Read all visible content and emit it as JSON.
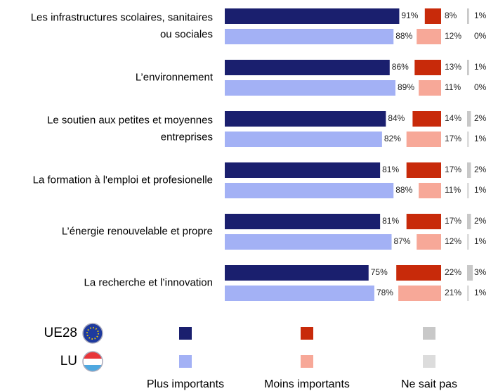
{
  "chart_data": {
    "type": "bar",
    "categories": [
      [
        "Les infrastructures scolaires, sanitaires",
        "ou sociales"
      ],
      [
        "L’environnement"
      ],
      [
        "Le soutien aux petites et moyennes",
        "entreprises"
      ],
      [
        "La formation à l'emploi et profesionelle"
      ],
      [
        "L’énergie renouvelable et propre"
      ],
      [
        "La recherche et l’innovation"
      ]
    ],
    "measures": [
      "Plus importants",
      "Moins importants",
      "Ne sait pas"
    ],
    "series": [
      {
        "name": "UE28",
        "colors": [
          "#1a1f6e",
          "#c82a0a",
          "#c8c8c8"
        ],
        "values": [
          [
            91,
            8,
            1
          ],
          [
            86,
            13,
            1
          ],
          [
            84,
            14,
            2
          ],
          [
            81,
            17,
            2
          ],
          [
            81,
            17,
            2
          ],
          [
            75,
            22,
            3
          ]
        ],
        "value_labels": [
          [
            "91%",
            "8%",
            "1%"
          ],
          [
            "86%",
            "13%",
            "1%"
          ],
          [
            "84%",
            "14%",
            "2%"
          ],
          [
            "81%",
            "17%",
            "2%"
          ],
          [
            "81%",
            "17%",
            "2%"
          ],
          [
            "75%",
            "22%",
            "3%"
          ]
        ]
      },
      {
        "name": "LU",
        "colors": [
          "#a3b1f5",
          "#f7a898",
          "#dcdcdc"
        ],
        "values": [
          [
            88,
            12,
            0
          ],
          [
            89,
            11,
            0
          ],
          [
            82,
            17,
            1
          ],
          [
            88,
            11,
            1
          ],
          [
            87,
            12,
            1
          ],
          [
            78,
            21,
            1
          ]
        ],
        "value_labels": [
          [
            "88%",
            "12%",
            "0%"
          ],
          [
            "89%",
            "11%",
            "0%"
          ],
          [
            "82%",
            "17%",
            "1%"
          ],
          [
            "88%",
            "11%",
            "1%"
          ],
          [
            "87%",
            "12%",
            "1%"
          ],
          [
            "78%",
            "21%",
            "1%"
          ]
        ]
      }
    ]
  }
}
